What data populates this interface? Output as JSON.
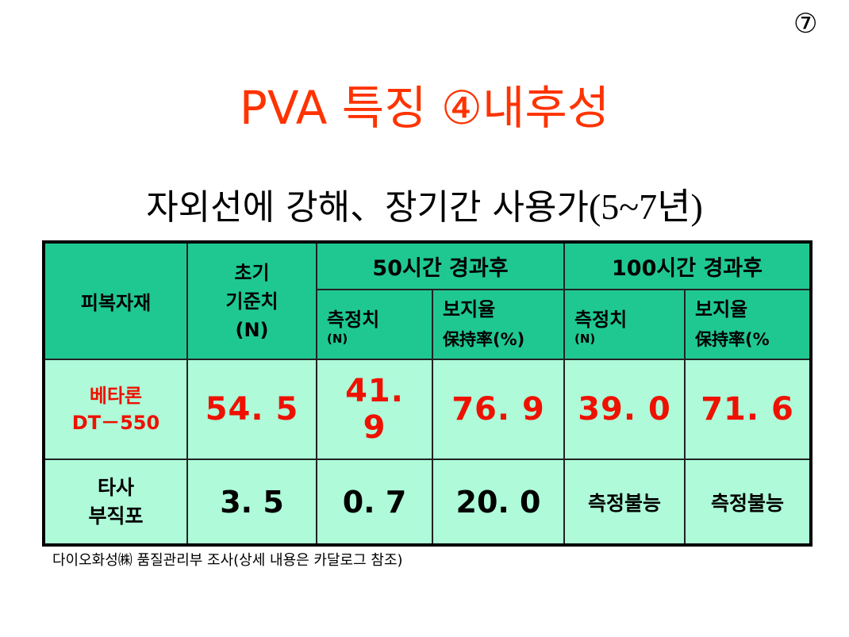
{
  "page_number": "⑦",
  "title": "PVA 특징 ④내후성",
  "subtitle": {
    "main": "자외선에 강해、장기간 사용가",
    "paren": "(5~7년)"
  },
  "table": {
    "header": {
      "material": "피복자재",
      "initial": [
        "초기",
        "기준치",
        "(N)"
      ],
      "group_50h": "50시간 경과후",
      "group_100h": "100시간 경과후",
      "measured": "측정치",
      "measured_unit": "(N)",
      "retention": "보지율",
      "retention_sub_50": "保持率(%)",
      "retention_sub_100": "保持率(%"
    },
    "rows": [
      {
        "name": [
          "베타론",
          "DT－550"
        ],
        "initial": "54. 5",
        "measured_50": [
          "41.",
          "9"
        ],
        "retention_50": "76. 9",
        "measured_100": "39. 0",
        "retention_100": "71. 6"
      },
      {
        "name": [
          "타사",
          "부직포"
        ],
        "initial": "3. 5",
        "measured_50": "0. 7",
        "retention_50": "20. 0",
        "measured_100": "측정불능",
        "retention_100": "측정불능"
      }
    ]
  },
  "footnote": "다이오화성㈱ 품질관리부 조사(상세 내용은 카달로그 참조)"
}
